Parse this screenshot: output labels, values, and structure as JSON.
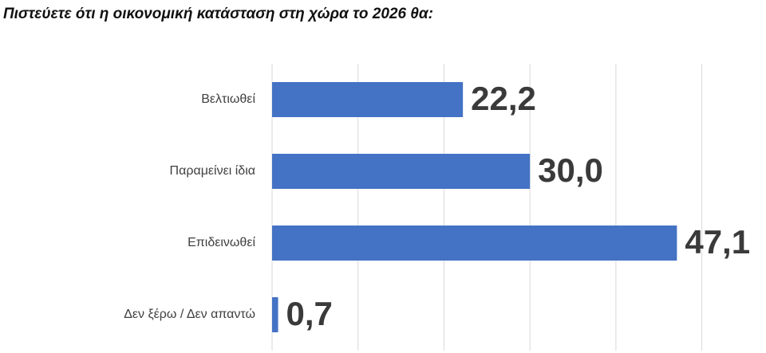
{
  "chart_data": {
    "type": "bar",
    "orientation": "horizontal",
    "title": "Πιστεύετε ότι η οικονομική κατάσταση στη χώρα το 2026 θα:",
    "categories": [
      "Βελτιωθεί",
      "Παραμείνει ίδια",
      "Επιδεινωθεί",
      "Δεν ξέρω / Δεν απαντώ"
    ],
    "values": [
      22.2,
      30.0,
      47.1,
      0.7
    ],
    "value_labels": [
      "22,2",
      "30,0",
      "47,1",
      "0,7"
    ],
    "color": "#4472c4",
    "xlim": [
      0,
      57
    ],
    "xticks": [
      0,
      10,
      20,
      30,
      40,
      50
    ],
    "grid": true
  }
}
